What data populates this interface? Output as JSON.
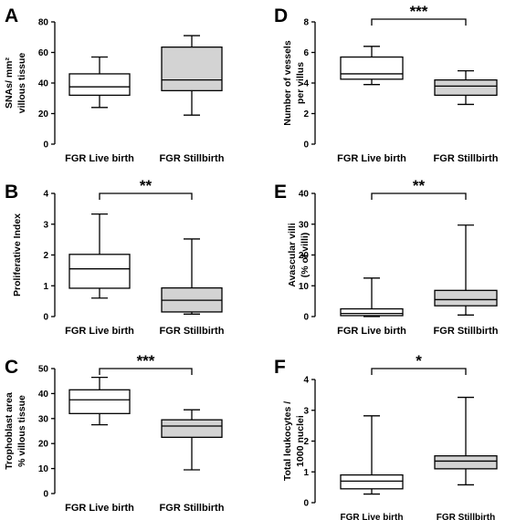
{
  "chart_data": [
    {
      "panel": "A",
      "type": "boxplot",
      "ylabel": [
        "SNAs/ mm²",
        "villous tissue"
      ],
      "ylim": [
        0,
        80
      ],
      "yticks": [
        0,
        20,
        40,
        60,
        80
      ],
      "categories": [
        "FGR Live birth",
        "FGR Stillbirth"
      ],
      "boxes": [
        {
          "min": 24,
          "q1": 32,
          "median": 37.5,
          "q3": 46,
          "max": 57,
          "fill": "#ffffff"
        },
        {
          "min": 19,
          "q1": 35,
          "median": 42,
          "q3": 63.5,
          "max": 71,
          "fill": "#d3d3d3"
        }
      ],
      "significance": ""
    },
    {
      "panel": "D",
      "type": "boxplot",
      "ylabel": [
        "Number of vessels",
        "per villus"
      ],
      "ylim": [
        0,
        8
      ],
      "yticks": [
        0,
        2,
        4,
        6,
        8
      ],
      "categories": [
        "FGR Live birth",
        "FGR Stillbirth"
      ],
      "boxes": [
        {
          "min": 3.9,
          "q1": 4.25,
          "median": 4.6,
          "q3": 5.7,
          "max": 6.4,
          "fill": "#ffffff"
        },
        {
          "min": 2.6,
          "q1": 3.2,
          "median": 3.8,
          "q3": 4.2,
          "max": 4.8,
          "fill": "#d3d3d3"
        }
      ],
      "significance": "***"
    },
    {
      "panel": "B",
      "type": "boxplot",
      "ylabel": [
        "Proliferative Index"
      ],
      "ylim": [
        0,
        4
      ],
      "yticks": [
        0,
        1,
        2,
        3,
        4
      ],
      "categories": [
        "FGR Live birth",
        "FGR Stillbirth"
      ],
      "boxes": [
        {
          "min": 0.6,
          "q1": 0.92,
          "median": 1.55,
          "q3": 2.02,
          "max": 3.33,
          "fill": "#ffffff"
        },
        {
          "min": 0.08,
          "q1": 0.15,
          "median": 0.53,
          "q3": 0.93,
          "max": 2.52,
          "fill": "#d3d3d3"
        }
      ],
      "significance": "**"
    },
    {
      "panel": "E",
      "type": "boxplot",
      "ylabel": [
        "Avascular villi",
        "(% of villi)"
      ],
      "ylim": [
        0,
        40
      ],
      "yticks": [
        0,
        10,
        20,
        30,
        40
      ],
      "categories": [
        "FGR Live birth",
        "FGR Stillbirth"
      ],
      "boxes": [
        {
          "min": 0,
          "q1": 0.3,
          "median": 1.0,
          "q3": 2.5,
          "max": 12.5,
          "fill": "#ffffff"
        },
        {
          "min": 0.5,
          "q1": 3.5,
          "median": 5.5,
          "q3": 8.5,
          "max": 29.7,
          "fill": "#d3d3d3"
        }
      ],
      "significance": "**"
    },
    {
      "panel": "C",
      "type": "boxplot",
      "ylabel": [
        "Trophoblast area",
        "% villous tissue"
      ],
      "ylim": [
        0,
        50
      ],
      "yticks": [
        0,
        10,
        20,
        30,
        40,
        50
      ],
      "categories": [
        "FGR Live birth",
        "FGR Stillbirth"
      ],
      "boxes": [
        {
          "min": 27.5,
          "q1": 32,
          "median": 37.5,
          "q3": 41.5,
          "max": 46.5,
          "fill": "#ffffff"
        },
        {
          "min": 9.5,
          "q1": 22.5,
          "median": 27,
          "q3": 29.5,
          "max": 33.5,
          "fill": "#d3d3d3"
        }
      ],
      "significance": "***"
    },
    {
      "panel": "F",
      "type": "boxplot",
      "ylabel": [
        "Total leukocytes /",
        "1000 nuclei"
      ],
      "ylim": [
        0,
        4
      ],
      "yticks": [
        0,
        1,
        2,
        3,
        4
      ],
      "categories": [
        "FGR Live birth",
        "FGR Stillbirth"
      ],
      "boxes": [
        {
          "min": 0.28,
          "q1": 0.45,
          "median": 0.7,
          "q3": 0.9,
          "max": 2.82,
          "fill": "#ffffff"
        },
        {
          "min": 0.58,
          "q1": 1.1,
          "median": 1.35,
          "q3": 1.52,
          "max": 3.42,
          "fill": "#d3d3d3"
        }
      ],
      "significance": "*"
    }
  ]
}
